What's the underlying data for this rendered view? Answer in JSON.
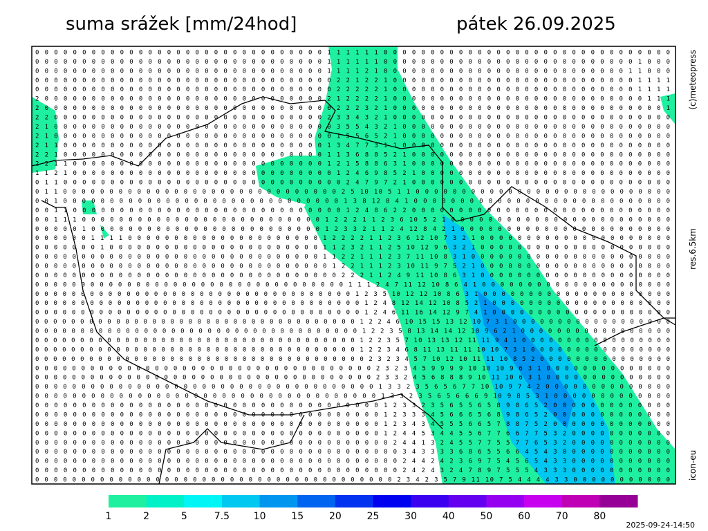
{
  "header": {
    "title": "suma srážek [mm/24hod]",
    "date": "pátek 26.09.2025"
  },
  "side_labels": {
    "copyright": "(c)meteopress",
    "resolution": "res.6.5km",
    "model": "icon-eu"
  },
  "timestamp": "2025-09-24-14:50",
  "grid_rows": [
    "0 0 0 0 0 0 0 0 0 0 0 0 0 0 0 0 0 0 0 0 0 0 0 0 0 0 0 0 0 0 0 1 1 1 1 1 1 0 0 0 0 0 0 0 0 0 0 0 0 0 0 0 0 0 0 0 0 0 0 0 0 0 0 0 0 0 0 0",
    "0 0 0 0 0 0 0 0 0 0 0 0 0 0 0 0 0 0 0 0 0 0 0 0 0 0 0 0 0 0 0 1 1 1 1 1 1 0 0 0 0 0 0 0 0 0 0 0 0 0 0 0 0 0 0 0 0 0 0 0 0 0 0 0 1 0 0 0",
    "0 0 0 0 0 0 0 0 0 0 0 0 0 0 0 0 0 0 0 0 0 0 0 0 0 0 0 0 0 0 0 1 1 1 1 2 1 0 0 0 0 0 0 0 0 0 0 0 0 0 0 0 0 0 0 0 0 0 0 0 0 0 0 1 1 0 0 0",
    "0 0 0 0 0 0 0 0 0 0 0 0 0 0 0 0 0 0 0 0 0 0 0 0 0 0 0 0 0 0 0 0 2 2 1 2 2 1 0 0 0 0 0 0 0 0 0 0 0 0 0 0 0 0 0 0 0 0 0 0 0 0 0 0 1 1 1 1",
    "0 0 0 0 0 0 0 0 0 0 0 0 0 0 0 0 0 0 0 0 0 0 0 0 0 0 0 0 0 0 0 0 2 2 2 2 2 1 0 0 0 0 0 0 0 0 0 0 0 0 0 0 0 0 0 0 0 0 0 0 0 0 0 0 1 1 1 1",
    "2 0 0 0 0 0 0 0 0 0 0 0 0 0 0 0 0 0 0 0 0 0 0 0 0 0 0 0 0 0 0 2 1 2 2 2 2 1 0 0 0 0 0 0 0 0 0 0 0 0 0 0 0 0 0 0 0 0 0 0 0 0 0 0 0 1 1 1",
    "2 0 0 0 0 0 0 0 0 0 0 0 0 0 0 0 0 0 0 0 0 0 0 0 0 0 0 0 0 0 0 0 2 2 2 3 2 1 0 0 0 0 0 0 0 0 0 0 0 0 0 0 0 0 0 0 0 0 0 0 0 0 0 0 0 0 0 1",
    "2 2 0 0 0 0 0 0 0 0 0 0 0 0 0 0 0 0 0 0 0 0 0 0 0 0 0 0 0 0 0 2 3 3 4 3 2 1 0 0 0 0 0 0 0 0 0 0 0 0 0 0 0 0 0 0 0 0 0 0 0 0 0 0 0 0 0 0",
    "2 1 0 0 0 0 0 0 0 0 0 0 0 0 0 0 0 0 0 0 0 0 0 0 0 0 0 0 0 0 0 0 3 5 5 4 3 2 1 0 0 0 0 0 0 0 0 0 0 0 0 0 0 0 0 0 0 0 0 0 0 0 0 0 0 0 0 0",
    "2 1 0 0 0 0 0 0 0 0 0 0 0 0 0 0 0 0 0 0 0 0 0 0 0 0 0 0 0 0 0 0 1 5 5 6 5 2 1 0 0 0 0 0 0 0 0 0 0 0 0 0 0 0 0 0 0 0 0 0 0 0 0 0 0 0 0 0",
    "2 1 1 0 0 0 0 0 0 0 0 0 0 0 0 0 0 0 0 0 0 0 0 0 0 0 0 0 0 0 0 1 3 4 7 7 3 1 1 0 0 0 0 0 0 0 0 0 0 0 0 0 0 0 0 0 0 0 0 0 0 0 0 0 0 0 0 0",
    "2 2 1 0 0 0 0 0 0 0 0 0 0 0 0 0 0 0 0 0 0 0 0 0 0 0 0 0 0 0 0 1 1 3 6 8 8 5 2 1 0 0 0 0 0 0 0 0 0 0 0 0 0 0 0 0 0 0 0 0 0 0 0 0 0 0 0 0",
    "2 2 1 1 0 0 0 0 0 0 0 0 0 0 0 0 0 0 0 0 0 0 0 0 0 0 0 0 0 0 0 1 2 1 5 8 8 6 3 1 0 0 0 0 0 0 0 0 0 0 0 0 0 0 0 0 0 0 0 0 0 0 0 0 0 0 0 0",
    "1 1 2 1 0 0 0 0 0 0 0 0 0 0 0 0 0 0 0 0 0 0 0 0 0 0 0 0 0 0 0 0 1 2 4 6 9 8 5 2 1 0 0 0 0 0 0 0 0 0 0 0 0 0 0 0 0 0 0 0 0 0 0 0 0 0 0 0",
    "0 1 1 0 0 0 0 0 0 0 0 0 0 0 0 0 0 0 0 0 0 0 0 0 0 0 0 0 0 0 0 0 0 2 4 7 9 7 2 1 0 0 0 0 0 0 0 0 0 0 0 0 0 0 0 0 0 0 0 0 0 0 0 0 0 0 0 0",
    "0 1 1 0 0 0 0 0 0 0 0 0 0 0 0 0 0 0 0 0 0 0 0 0 0 0 0 0 0 0 0 0 0 2 5 10 10 5 1 1 0 0 0 0 0 0 0 0 0 0 0 0 0 0 0 0 0 0 0 0 0 0 0 0 0 0 0 0",
    "0 0 1 0 0 0 0 0 0 0 0 0 0 0 0 0 0 0 0 0 0 0 0 0 0 0 0 0 0 0 0 0 0 1 3 8 12 8 4 1 0 0 0 0 0 0 0 0 0 0 0 0 0 0 0 0 0 0 0 0 0 0 0 0 0 0 0 0",
    "0 0 1 1 0 0 0 0 0 0 0 0 0 0 0 0 0 0 0 0 0 0 0 0 0 0 0 0 0 0 0 0 0 1 2 4 8 6 2 2 0 0 0 0 0 0 0 0 0 0 0 0 0 0 0 0 0 0 0 0 0 0 0 0 0 0 0 0",
    "0 0 1 1 1 0 0 0 0 0 0 0 0 0 0 0 0 0 0 0 0 0 0 0 0 0 0 0 0 0 0 1 2 2 2 1 1 2 3 6 10 5 2 1 0 0 0 0 0 0 0 0 0 0 0 0 0 0 0 0 0 0 0 0 0 0 0 0",
    "0 0 0 0 0 1 0 0 0 0 0 0 0 0 0 0 0 0 0 0 0 0 0 0 0 0 0 0 0 0 0 1 2 3 3 2 1 1 2 4 12 8 4 2 1 0 0 0 0 0 0 0 0 0 0 0 0 0 0 0 0 0 0 0 0 0 0 0",
    "0 0 0 0 0 0 1 1 1 1 0 0 0 0 0 0 0 0 0 0 0 0 0 0 0 0 0 0 0 0 0 1 2 2 2 2 1 1 2 3 6 12 10 7 3 2 1 0 0 0 0 0 0 0 0 0 0 0 0 0 0 0 0 0 0 0 0 0",
    "0 0 0 0 0 0 0 1 0 0 0 0 0 0 0 0 0 0 0 0 0 0 0 0 0 0 0 0 0 0 0 1 1 2 3 2 1 1 2 5 10 12 9 6 3 2 1 0 0 0 0 0 0 0 0 0 0 0 0 0 0 0 0 0 0 0 0 0",
    "0 0 0 0 0 0 0 0 0 0 0 0 0 0 0 0 0 0 0 0 0 0 0 0 0 0 0 0 0 0 0 1 1 2 2 1 1 1 2 3 7 11 10 8 3 1 0 0 0 0 0 0 0 0 0 0 0 0 0 0 0 0 0 0 0 0 0 0",
    "0 0 0 0 0 0 0 0 0 0 0 0 0 0 0 0 0 0 0 0 0 0 0 0 0 0 0 0 0 0 0 0 1 2 2 1 1 1 2 3 10 11 9 7 5 2 1 0 0 0 0 0 0 0 0 0 0 0 0 0 0 0 0 0 0 0 0 0",
    "0 0 0 0 0 0 0 0 0 0 0 0 0 0 0 0 0 0 0 0 0 0 0 0 0 0 0 0 0 0 0 0 0 2 2 2 1 1 2 4 9 11 10 8 6 3 1 0 0 0 0 0 0 0 0 0 0 0 0 0 0 0 0 0 0 0 0 0",
    "0 0 0 0 0 0 0 0 0 0 0 0 0 0 0 0 0 0 0 0 0 0 0 0 0 0 0 0 0 0 0 0 0 0 1 1 1 2 4 7 11 12 10 8 6 4 1 0 0 0 0 0 0 0 0 0 0 0 0 0 0 0 0 0 0 0 0 0",
    "0 0 0 0 0 0 0 0 0 0 0 0 0 0 0 0 0 0 0 0 0 0 0 0 0 0 0 0 0 0 0 0 0 0 0 1 2 3 5 10 12 12 10 8 6 3 1 0 0 0 0 0 0 0 0 0 0 0 0 0 0 0 0 0 0 0 0 0",
    "0 0 0 0 0 0 0 0 0 0 0 0 0 0 0 0 0 0 0 0 0 0 0 0 0 0 0 0 0 0 0 0 0 0 0 0 1 2 4 8 12 14 12 10 8 5 2 1 0 0 0 0 0 0 0 0 0 0 0 0 0 0 0 0 0 0 0 0",
    "0 0 0 0 0 0 0 0 0 0 0 0 0 0 0 0 0 0 0 0 0 0 0 0 0 0 0 0 0 0 0 0 0 0 0 0 1 2 4 6 11 16 14 12 9 7 4 1 0 0 0 0 0 0 0 0 0 0 0 0 0 0 0 0 0 0 0 0",
    "0 0 0 0 0 0 0 0 0 0 0 0 0 0 0 0 0 0 0 0 0 0 0 0 0 0 0 0 0 0 0 0 0 0 0 0 1 2 2 4 6 10 15 15 13 12 10 7 3 1 0 0 0 0 0 0 0 0 0 0 0 0 0 0 0 0 0 0",
    "0 0 0 0 0 0 0 0 0 0 0 0 0 0 0 0 0 0 0 0 0 0 0 0 0 0 0 0 0 0 0 0 0 0 0 0 1 2 2 3 5 8 13 14 14 12 10 9 6 2 1 0 0 0 0 0 0 0 0 0 0 0 0 0 0 0 0 0",
    "0 0 0 0 0 0 0 0 0 0 0 0 0 0 0 0 0 0 0 0 0 0 0 0 0 0 0 0 0 0 0 0 0 0 0 0 1 2 2 3 5 7 10 13 13 12 11 11 9 4 1 0 0 0 0 0 0 0 0 0 0 0 0 0 0 0 0 0",
    "0 0 0 0 0 0 0 0 0 0 0 0 0 0 0 0 0 0 0 0 0 0 0 0 0 0 0 0 0 0 0 0 0 0 0 0 1 2 2 3 4 6 8 11 13 11 11 10 10 7 3 1 0 0 0 0 0 0 0 0 0 0 0 0 0 0 0 0",
    "0 0 0 0 0 0 0 0 0 0 0 0 0 0 0 0 0 0 0 0 0 0 0 0 0 0 0 0 0 0 0 0 0 0 0 0 0 2 3 2 3 4 5 7 10 12 10 11 11 10 8 5 2 0 0 0 0 0 0 0 0 0 0 0 0 0 0 0",
    "0 0 0 0 0 0 0 0 0 0 0 0 0 0 0 0 0 0 0 0 0 0 0 0 0 0 0 0 0 0 0 0 0 0 0 0 0 2 3 2 3 4 5 9 9 9 9 10 10 10 9 6 3 1 0 0 0 0 0 0 0 0 0 0 0 0 0 0",
    "0 0 0 0 0 0 0 0 0 0 0 0 0 0 0 0 0 0 0 0 0 0 0 0 0 0 0 0 0 0 0 0 0 0 0 0 0 2 3 3 2 4 5 6 8 8 8 9 10 11 10 6 3 1 0 0 0 0 0 0 0 0 0 0 0 0 0 0",
    "0 0 0 0 0 0 0 0 0 0 0 0 0 0 0 0 0 0 0 0 0 0 0 0 0 0 0 0 0 0 0 0 0 0 0 0 0 1 3 3 2 3 5 6 5 6 7 7 10 10 9 7 4 2 0 0 0 0 0 0 0 0 0 0 0 0 0 0",
    "0 0 0 0 0 0 0 0 0 0 0 0 0 0 0 0 0 0 0 0 0 0 0 0 0 0 0 0 0 0 0 0 0 0 0 0 0 1 3 3 2 3 5 6 5 6 6 6 9 10 9 8 5 3 1 0 0 0 0 0 0 0 0 0 0 0 0 0",
    "0 0 0 0 0 0 0 0 0 0 0 0 0 0 0 0 0 0 0 0 0 0 0 0 0 0 0 0 0 0 0 0 0 0 0 0 0 1 2 3 3 2 3 5 6 5 5 6 5 8 9 8 6 5 2 0 0 0 0 0 0 0 0 0 0 0 0 0",
    "0 0 0 0 0 0 0 0 0 0 0 0 0 0 0 0 0 0 0 0 0 0 0 0 0 0 0 0 0 0 0 0 0 0 0 0 0 1 2 3 3 3 4 5 6 6 6 5 6 8 9 8 6 5 2 0 0 0 0 0 0 0 0 0 0 0 0 0",
    "0 0 0 0 0 0 0 0 0 0 0 0 0 0 0 0 0 0 0 0 0 0 0 0 0 0 0 0 0 0 0 0 0 0 0 0 0 1 2 3 4 3 4 5 5 5 6 6 5 7 8 8 7 5 2 0 0 0 0 0 0 0 0 0 0 0 0 0",
    "0 0 0 0 0 0 0 0 0 0 0 0 0 0 0 0 0 0 0 0 0 0 0 0 0 0 0 0 0 0 0 0 0 0 0 0 0 1 2 4 4 5 3 4 4 5 5 6 7 7 6 6 7 7 5 3 2 0 0 0 0 0 0 0 0 0 0 0",
    "0 0 0 0 0 0 0 0 0 0 0 0 0 0 0 0 0 0 0 0 0 0 0 0 0 0 0 0 0 0 0 0 0 0 0 0 0 0 2 4 4 1 3 2 4 5 5 7 7 5 5 7 7 6 5 3 2 0 0 0 0 0 0 0 0 0 0 0",
    "0 0 0 0 0 0 0 0 0 0 0 0 0 0 0 0 0 0 0 0 0 0 0 0 0 0 0 0 0 0 0 0 0 0 0 0 0 0 0 3 4 3 3 3 3 6 8 6 5 5 6 6 4 5 4 3 0 0 0 0 0 0 0 0 0 0 0 0",
    "0 0 0 0 0 0 0 0 0 0 0 0 0 0 0 0 0 0 0 0 0 0 0 0 0 0 0 0 0 0 0 0 0 0 0 0 0 0 0 2 4 4 2 4 2 3 6 9 7 5 4 5 6 5 4 3 3 0 0 0 0 0 0 0 0 0 0 0",
    "0 0 0 0 0 0 0 0 0 0 0 0 0 0 0 0 0 0 0 0 0 0 0 0 0 0 0 0 0 0 0 0 0 0 0 0 0 0 0 2 4 2 4 3 2 4 7 8 9 7 5 5 5 4 3 3 3 0 0 0 0 0 0 0 0 0 0 0",
    "0 0 0 0 0 0 0 0 0 0 0 0 0 0 0 0 0 0 0 0 0 0 0 0 0 0 0 0 0 0 0 0 0 0 0 0 0 0 0 2 3 4 2 3 5 7 9 11 10 7 5 4 4 4 4 3 3 0 0 0 0 0 0 0 0 0 0 0"
  ],
  "legend": {
    "labels": [
      "1",
      "2",
      "5",
      "7.5",
      "10",
      "15",
      "20",
      "25",
      "30",
      "40",
      "50",
      "60",
      "70",
      "80"
    ],
    "colors": [
      "#1ef0a0",
      "#00f0c8",
      "#00f6f6",
      "#00c8f0",
      "#0096f0",
      "#0064f0",
      "#0032f0",
      "#0000f0",
      "#3c00f0",
      "#6400f0",
      "#9600f0",
      "#c800f0",
      "#c000b4",
      "#960096"
    ]
  }
}
